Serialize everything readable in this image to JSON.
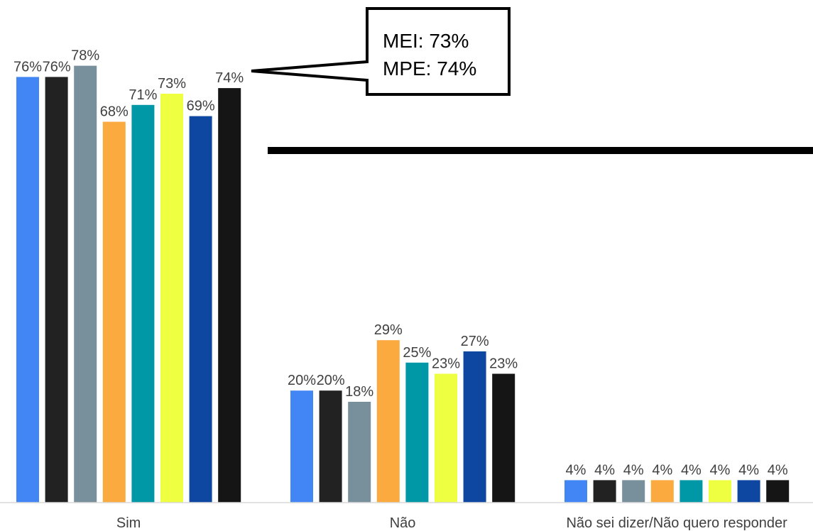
{
  "chart_data": {
    "type": "bar",
    "categories": [
      "Sim",
      "Não",
      "Não sei dizer/Não quero responder"
    ],
    "series": [
      {
        "values": [
          76,
          20,
          4
        ],
        "color": "#4285F4"
      },
      {
        "values": [
          76,
          20,
          4
        ],
        "color": "#222222"
      },
      {
        "values": [
          78,
          18,
          4
        ],
        "color": "#78909C"
      },
      {
        "values": [
          68,
          29,
          4
        ],
        "color": "#FBAA3F"
      },
      {
        "values": [
          71,
          25,
          4
        ],
        "color": "#0097A7"
      },
      {
        "values": [
          73,
          23,
          4
        ],
        "color": "#EEFF41"
      },
      {
        "values": [
          69,
          27,
          4
        ],
        "color": "#0D47A1"
      },
      {
        "values": [
          74,
          23,
          4
        ],
        "color": "#151515"
      }
    ],
    "value_labels": [
      [
        "76%",
        "20%",
        "4%"
      ],
      [
        "76%",
        "20%",
        "4%"
      ],
      [
        "78%",
        "18%",
        "4%"
      ],
      [
        "68%",
        "29%",
        "4%"
      ],
      [
        "71%",
        "25%",
        "4%"
      ],
      [
        "73%",
        "23%",
        "4%"
      ],
      [
        "69%",
        "27%",
        "4%"
      ],
      [
        "74%",
        "23%",
        "4%"
      ]
    ],
    "ylim": [
      0,
      100
    ],
    "legend": "none",
    "grid": false,
    "annotation": {
      "lines": [
        "MEI: 73%",
        "MPE: 74%"
      ]
    }
  }
}
